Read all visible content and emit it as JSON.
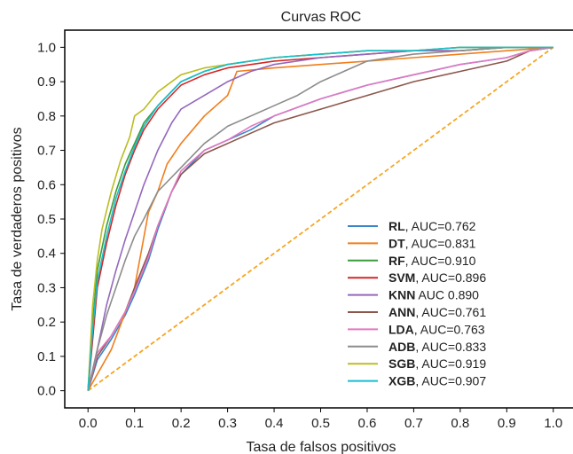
{
  "chart_data": {
    "type": "line",
    "title": "Curvas ROC",
    "xlabel": "Tasa de falsos positivos",
    "ylabel": "Tasa de verdaderos positivos",
    "xlim": [
      -0.05,
      1.05
    ],
    "ylim": [
      -0.05,
      1.05
    ],
    "xticks": [
      "0.0",
      "0.1",
      "0.2",
      "0.3",
      "0.4",
      "0.5",
      "0.6",
      "0.7",
      "0.8",
      "0.9",
      "1.0"
    ],
    "yticks": [
      "0.0",
      "0.1",
      "0.2",
      "0.3",
      "0.4",
      "0.5",
      "0.6",
      "0.7",
      "0.8",
      "0.9",
      "1.0"
    ],
    "grid": false,
    "legend_position": "bottom-right",
    "diagonal": {
      "x": [
        0,
        1
      ],
      "y": [
        0,
        1
      ],
      "color": "#f5a623",
      "style": "dashed"
    },
    "series": [
      {
        "name": "RL",
        "auc_label": ", AUC=0.762",
        "color": "#3a86c8",
        "x": [
          0,
          0.02,
          0.05,
          0.08,
          0.1,
          0.13,
          0.15,
          0.18,
          0.2,
          0.25,
          0.3,
          0.35,
          0.4,
          0.5,
          0.6,
          0.7,
          0.8,
          0.9,
          0.95,
          1.0
        ],
        "y": [
          0,
          0.09,
          0.15,
          0.22,
          0.28,
          0.38,
          0.47,
          0.58,
          0.63,
          0.7,
          0.73,
          0.76,
          0.8,
          0.85,
          0.89,
          0.92,
          0.95,
          0.97,
          0.99,
          1.0
        ]
      },
      {
        "name": "DT",
        "auc_label": ", AUC=0.831",
        "color": "#f07e1e",
        "x": [
          0,
          0.05,
          0.1,
          0.13,
          0.15,
          0.17,
          0.2,
          0.25,
          0.3,
          0.32,
          0.4,
          0.5,
          0.6,
          0.7,
          0.8,
          0.9,
          1.0
        ],
        "y": [
          0,
          0.12,
          0.3,
          0.52,
          0.58,
          0.66,
          0.72,
          0.8,
          0.86,
          0.93,
          0.94,
          0.95,
          0.96,
          0.97,
          0.98,
          0.99,
          1.0
        ]
      },
      {
        "name": "RF",
        "auc_label": ", AUC=0.910",
        "color": "#3a9c3a",
        "x": [
          0,
          0.01,
          0.02,
          0.04,
          0.06,
          0.08,
          0.1,
          0.12,
          0.15,
          0.2,
          0.25,
          0.3,
          0.4,
          0.5,
          0.6,
          0.7,
          0.8,
          0.9,
          1.0
        ],
        "y": [
          0,
          0.2,
          0.35,
          0.48,
          0.58,
          0.66,
          0.72,
          0.78,
          0.83,
          0.9,
          0.93,
          0.95,
          0.97,
          0.98,
          0.99,
          0.99,
          1.0,
          1.0,
          1.0
        ]
      },
      {
        "name": "SVM",
        "auc_label": ", AUC=0.896",
        "color": "#d62728",
        "x": [
          0,
          0.01,
          0.02,
          0.04,
          0.06,
          0.08,
          0.1,
          0.12,
          0.15,
          0.2,
          0.25,
          0.3,
          0.4,
          0.5,
          0.6,
          0.7,
          0.8,
          0.9,
          1.0
        ],
        "y": [
          0,
          0.15,
          0.3,
          0.43,
          0.54,
          0.63,
          0.7,
          0.76,
          0.82,
          0.89,
          0.92,
          0.94,
          0.96,
          0.97,
          0.98,
          0.99,
          0.99,
          1.0,
          1.0
        ]
      },
      {
        "name": "KNN",
        "auc_label": " AUC 0.890",
        "color": "#9467bd",
        "x": [
          0,
          0.02,
          0.04,
          0.06,
          0.08,
          0.1,
          0.12,
          0.15,
          0.18,
          0.2,
          0.25,
          0.3,
          0.35,
          0.4,
          0.5,
          0.6,
          0.7,
          0.8,
          0.9,
          1.0
        ],
        "y": [
          0,
          0.12,
          0.25,
          0.35,
          0.44,
          0.52,
          0.6,
          0.7,
          0.78,
          0.82,
          0.86,
          0.9,
          0.93,
          0.95,
          0.97,
          0.98,
          0.99,
          0.99,
          1.0,
          1.0
        ]
      },
      {
        "name": "ANN",
        "auc_label": ", AUC=0.761",
        "color": "#8c564b",
        "x": [
          0,
          0.02,
          0.05,
          0.08,
          0.1,
          0.13,
          0.15,
          0.18,
          0.2,
          0.25,
          0.3,
          0.35,
          0.4,
          0.5,
          0.6,
          0.7,
          0.8,
          0.9,
          0.95,
          1.0
        ],
        "y": [
          0,
          0.1,
          0.16,
          0.23,
          0.3,
          0.4,
          0.48,
          0.58,
          0.63,
          0.69,
          0.72,
          0.75,
          0.78,
          0.82,
          0.86,
          0.9,
          0.93,
          0.96,
          0.99,
          1.0
        ]
      },
      {
        "name": "LDA",
        "auc_label": ", AUC=0.763",
        "color": "#e377c2",
        "x": [
          0,
          0.02,
          0.05,
          0.08,
          0.1,
          0.13,
          0.15,
          0.18,
          0.2,
          0.25,
          0.3,
          0.35,
          0.4,
          0.5,
          0.6,
          0.7,
          0.8,
          0.9,
          0.95,
          1.0
        ],
        "y": [
          0,
          0.11,
          0.16,
          0.23,
          0.29,
          0.39,
          0.48,
          0.58,
          0.64,
          0.7,
          0.73,
          0.77,
          0.8,
          0.85,
          0.89,
          0.92,
          0.95,
          0.97,
          0.99,
          1.0
        ]
      },
      {
        "name": "ADB",
        "auc_label": ", AUC=0.833",
        "color": "#8c8c8c",
        "x": [
          0,
          0.02,
          0.04,
          0.06,
          0.08,
          0.1,
          0.12,
          0.15,
          0.2,
          0.25,
          0.3,
          0.35,
          0.4,
          0.45,
          0.5,
          0.55,
          0.6,
          0.7,
          0.8,
          0.9,
          1.0
        ],
        "y": [
          0,
          0.12,
          0.22,
          0.3,
          0.38,
          0.45,
          0.5,
          0.58,
          0.65,
          0.72,
          0.77,
          0.8,
          0.83,
          0.86,
          0.9,
          0.93,
          0.96,
          0.98,
          0.99,
          1.0,
          1.0
        ]
      },
      {
        "name": "SGB",
        "auc_label": ", AUC=0.919",
        "color": "#bcbd22",
        "x": [
          0,
          0.01,
          0.02,
          0.03,
          0.05,
          0.07,
          0.09,
          0.1,
          0.12,
          0.15,
          0.2,
          0.25,
          0.3,
          0.4,
          0.5,
          0.6,
          0.7,
          0.8,
          0.9,
          1.0
        ],
        "y": [
          0,
          0.25,
          0.38,
          0.47,
          0.58,
          0.67,
          0.74,
          0.8,
          0.82,
          0.87,
          0.92,
          0.94,
          0.95,
          0.97,
          0.98,
          0.99,
          0.99,
          1.0,
          1.0,
          1.0
        ]
      },
      {
        "name": "XGB",
        "auc_label": ", AUC=0.907",
        "color": "#17becf",
        "x": [
          0,
          0.01,
          0.02,
          0.04,
          0.06,
          0.08,
          0.1,
          0.12,
          0.15,
          0.2,
          0.25,
          0.3,
          0.4,
          0.5,
          0.6,
          0.7,
          0.8,
          0.9,
          1.0
        ],
        "y": [
          0,
          0.18,
          0.32,
          0.45,
          0.56,
          0.64,
          0.71,
          0.77,
          0.83,
          0.9,
          0.93,
          0.95,
          0.97,
          0.98,
          0.99,
          0.99,
          1.0,
          1.0,
          1.0
        ]
      }
    ]
  }
}
